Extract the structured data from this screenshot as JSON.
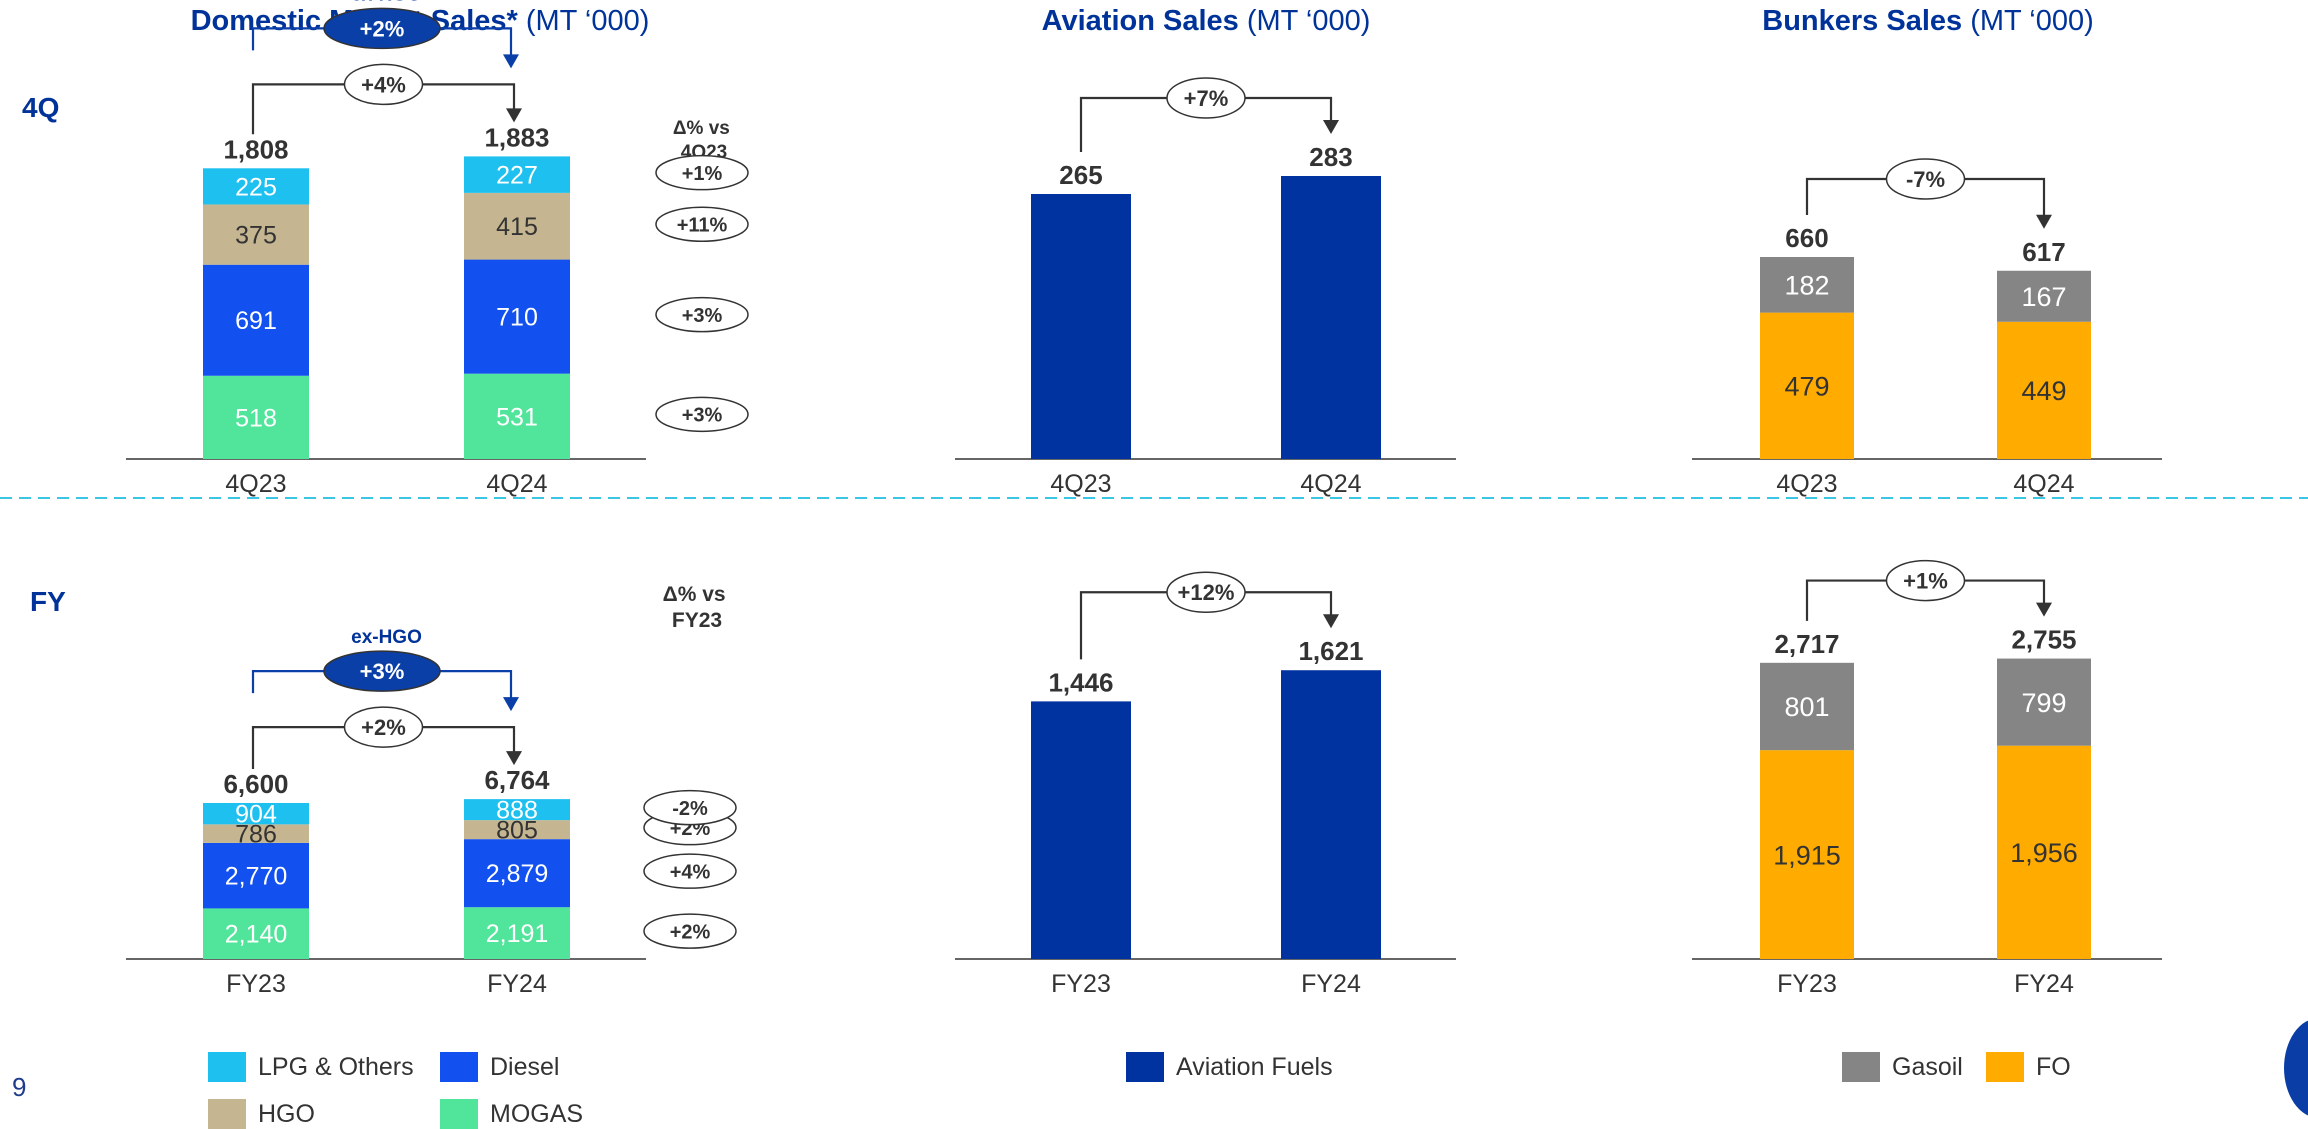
{
  "page": {
    "number": "9"
  },
  "rows": [
    {
      "label": "4Q"
    },
    {
      "label": "FY"
    }
  ],
  "colors": {
    "lpg": "#1ec0f0",
    "hgo": "#c5b691",
    "diesel": "#1250f0",
    "mogas": "#50e59b",
    "aviation": "#0033a0",
    "gasoil": "#858585",
    "fo": "#ffab00",
    "exhgo": "#0a3fa8",
    "divider": "#3cc6e6"
  },
  "panels": {
    "domestic": {
      "title_bold": "Domestic Market Sales*",
      "title_rest": " (MT ‘000)",
      "delta_header_4q": [
        "Δ% vs",
        "4Q23"
      ],
      "delta_header_fy": [
        "Δ% vs",
        "FY23"
      ],
      "exhgo_label": "ex-HGO"
    },
    "aviation": {
      "title_bold": "Aviation Sales",
      "title_rest": " (MT ‘000)"
    },
    "bunkers": {
      "title_bold": "Bunkers Sales",
      "title_rest": " (MT ‘000)"
    }
  },
  "legends": {
    "domestic": [
      {
        "name": "LPG & Others",
        "color": "#1ec0f0"
      },
      {
        "name": "Diesel",
        "color": "#1250f0"
      },
      {
        "name": "HGO",
        "color": "#c5b691"
      },
      {
        "name": "MOGAS",
        "color": "#50e59b"
      }
    ],
    "aviation": [
      {
        "name": "Aviation Fuels",
        "color": "#0033a0"
      }
    ],
    "bunkers": [
      {
        "name": "Gasoil",
        "color": "#858585"
      },
      {
        "name": "FO",
        "color": "#ffab00"
      }
    ]
  },
  "chart_data": [
    {
      "id": "domestic-4q",
      "type": "bar",
      "stacked": true,
      "categories": [
        "4Q23",
        "4Q24"
      ],
      "series": [
        {
          "name": "MOGAS",
          "values": [
            518,
            531
          ]
        },
        {
          "name": "Diesel",
          "values": [
            691,
            710
          ]
        },
        {
          "name": "HGO",
          "values": [
            375,
            415
          ]
        },
        {
          "name": "LPG & Others",
          "values": [
            225,
            227
          ]
        }
      ],
      "totals": [
        "1,808",
        "1,883"
      ],
      "value_labels": {
        "MOGAS": [
          "518",
          "531"
        ],
        "Diesel": [
          "691",
          "710"
        ],
        "HGO": [
          "375",
          "415"
        ],
        "LPG & Others": [
          "225",
          "227"
        ]
      },
      "growth": "+4%",
      "exhgo_growth": "+2%",
      "series_deltas": {
        "LPG & Others": "+1%",
        "HGO": "+11%",
        "Diesel": "+3%",
        "MOGAS": "+3%"
      }
    },
    {
      "id": "aviation-4q",
      "type": "bar",
      "categories": [
        "4Q23",
        "4Q24"
      ],
      "series": [
        {
          "name": "Aviation Fuels",
          "values": [
            265,
            283
          ]
        }
      ],
      "totals": [
        "265",
        "283"
      ],
      "growth": "+7%"
    },
    {
      "id": "bunkers-4q",
      "type": "bar",
      "stacked": true,
      "categories": [
        "4Q23",
        "4Q24"
      ],
      "series": [
        {
          "name": "FO",
          "values": [
            479,
            449
          ]
        },
        {
          "name": "Gasoil",
          "values": [
            182,
            167
          ]
        }
      ],
      "totals": [
        "660",
        "617"
      ],
      "value_labels": {
        "FO": [
          "479",
          "449"
        ],
        "Gasoil": [
          "182",
          "167"
        ]
      },
      "growth": "-7%"
    },
    {
      "id": "domestic-fy",
      "type": "bar",
      "stacked": true,
      "categories": [
        "FY23",
        "FY24"
      ],
      "series": [
        {
          "name": "MOGAS",
          "values": [
            2140,
            2191
          ]
        },
        {
          "name": "Diesel",
          "values": [
            2770,
            2879
          ]
        },
        {
          "name": "HGO",
          "values": [
            786,
            805
          ]
        },
        {
          "name": "LPG & Others",
          "values": [
            904,
            888
          ]
        }
      ],
      "totals": [
        "6,600",
        "6,764"
      ],
      "value_labels": {
        "MOGAS": [
          "2,140",
          "2,191"
        ],
        "Diesel": [
          "2,770",
          "2,879"
        ],
        "HGO": [
          "786",
          "805"
        ],
        "LPG & Others": [
          "904",
          "888"
        ]
      },
      "growth": "+2%",
      "exhgo_growth": "+3%",
      "series_deltas": {
        "LPG & Others": "-2%",
        "HGO": "+2%",
        "Diesel": "+4%",
        "MOGAS": "+2%"
      }
    },
    {
      "id": "aviation-fy",
      "type": "bar",
      "categories": [
        "FY23",
        "FY24"
      ],
      "series": [
        {
          "name": "Aviation Fuels",
          "values": [
            1446,
            1621
          ]
        }
      ],
      "totals": [
        "1,446",
        "1,621"
      ],
      "growth": "+12%"
    },
    {
      "id": "bunkers-fy",
      "type": "bar",
      "stacked": true,
      "categories": [
        "FY23",
        "FY24"
      ],
      "series": [
        {
          "name": "FO",
          "values": [
            1915,
            1956
          ]
        },
        {
          "name": "Gasoil",
          "values": [
            801,
            799
          ]
        }
      ],
      "totals": [
        "2,717",
        "2,755"
      ],
      "value_labels": {
        "FO": [
          "1,915",
          "1,956"
        ],
        "Gasoil": [
          "801",
          "799"
        ]
      },
      "growth": "+1%"
    }
  ]
}
